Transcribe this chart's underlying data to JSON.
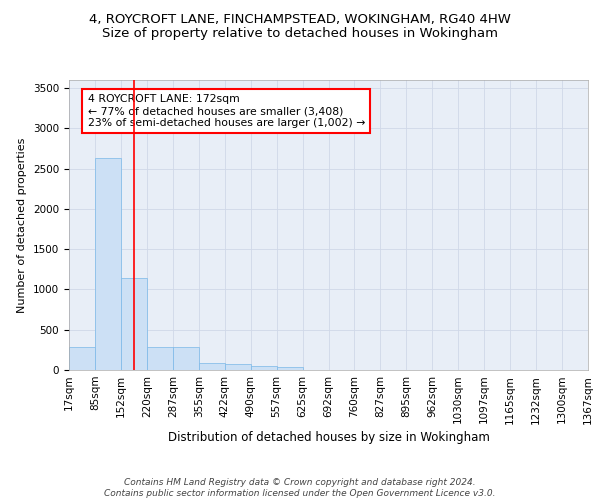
{
  "title1": "4, ROYCROFT LANE, FINCHAMPSTEAD, WOKINGHAM, RG40 4HW",
  "title2": "Size of property relative to detached houses in Wokingham",
  "xlabel": "Distribution of detached houses by size in Wokingham",
  "ylabel": "Number of detached properties",
  "bar_values": [
    280,
    2630,
    1140,
    285,
    285,
    85,
    70,
    50,
    40,
    0,
    0,
    0,
    0,
    0,
    0,
    0,
    0,
    0,
    0,
    0
  ],
  "bar_labels": [
    "17sqm",
    "85sqm",
    "152sqm",
    "220sqm",
    "287sqm",
    "355sqm",
    "422sqm",
    "490sqm",
    "557sqm",
    "625sqm",
    "692sqm",
    "760sqm",
    "827sqm",
    "895sqm",
    "962sqm",
    "1030sqm",
    "1097sqm",
    "1165sqm",
    "1232sqm",
    "1300sqm",
    "1367sqm"
  ],
  "bar_color": "#cce0f5",
  "bar_edge_color": "#7ab8e8",
  "grid_color": "#d0d8e8",
  "bg_color": "#e8eef7",
  "red_line_x": 2.0,
  "annotation_text": "4 ROYCROFT LANE: 172sqm\n← 77% of detached houses are smaller (3,408)\n23% of semi-detached houses are larger (1,002) →",
  "annotation_box_color": "white",
  "annotation_box_edge": "red",
  "ylim": [
    0,
    3600
  ],
  "yticks": [
    0,
    500,
    1000,
    1500,
    2000,
    2500,
    3000,
    3500
  ],
  "footer": "Contains HM Land Registry data © Crown copyright and database right 2024.\nContains public sector information licensed under the Open Government Licence v3.0.",
  "title1_fontsize": 9.5,
  "title2_fontsize": 9.5,
  "xlabel_fontsize": 8.5,
  "ylabel_fontsize": 8,
  "tick_fontsize": 7.5,
  "annotation_fontsize": 7.8,
  "footer_fontsize": 6.5
}
